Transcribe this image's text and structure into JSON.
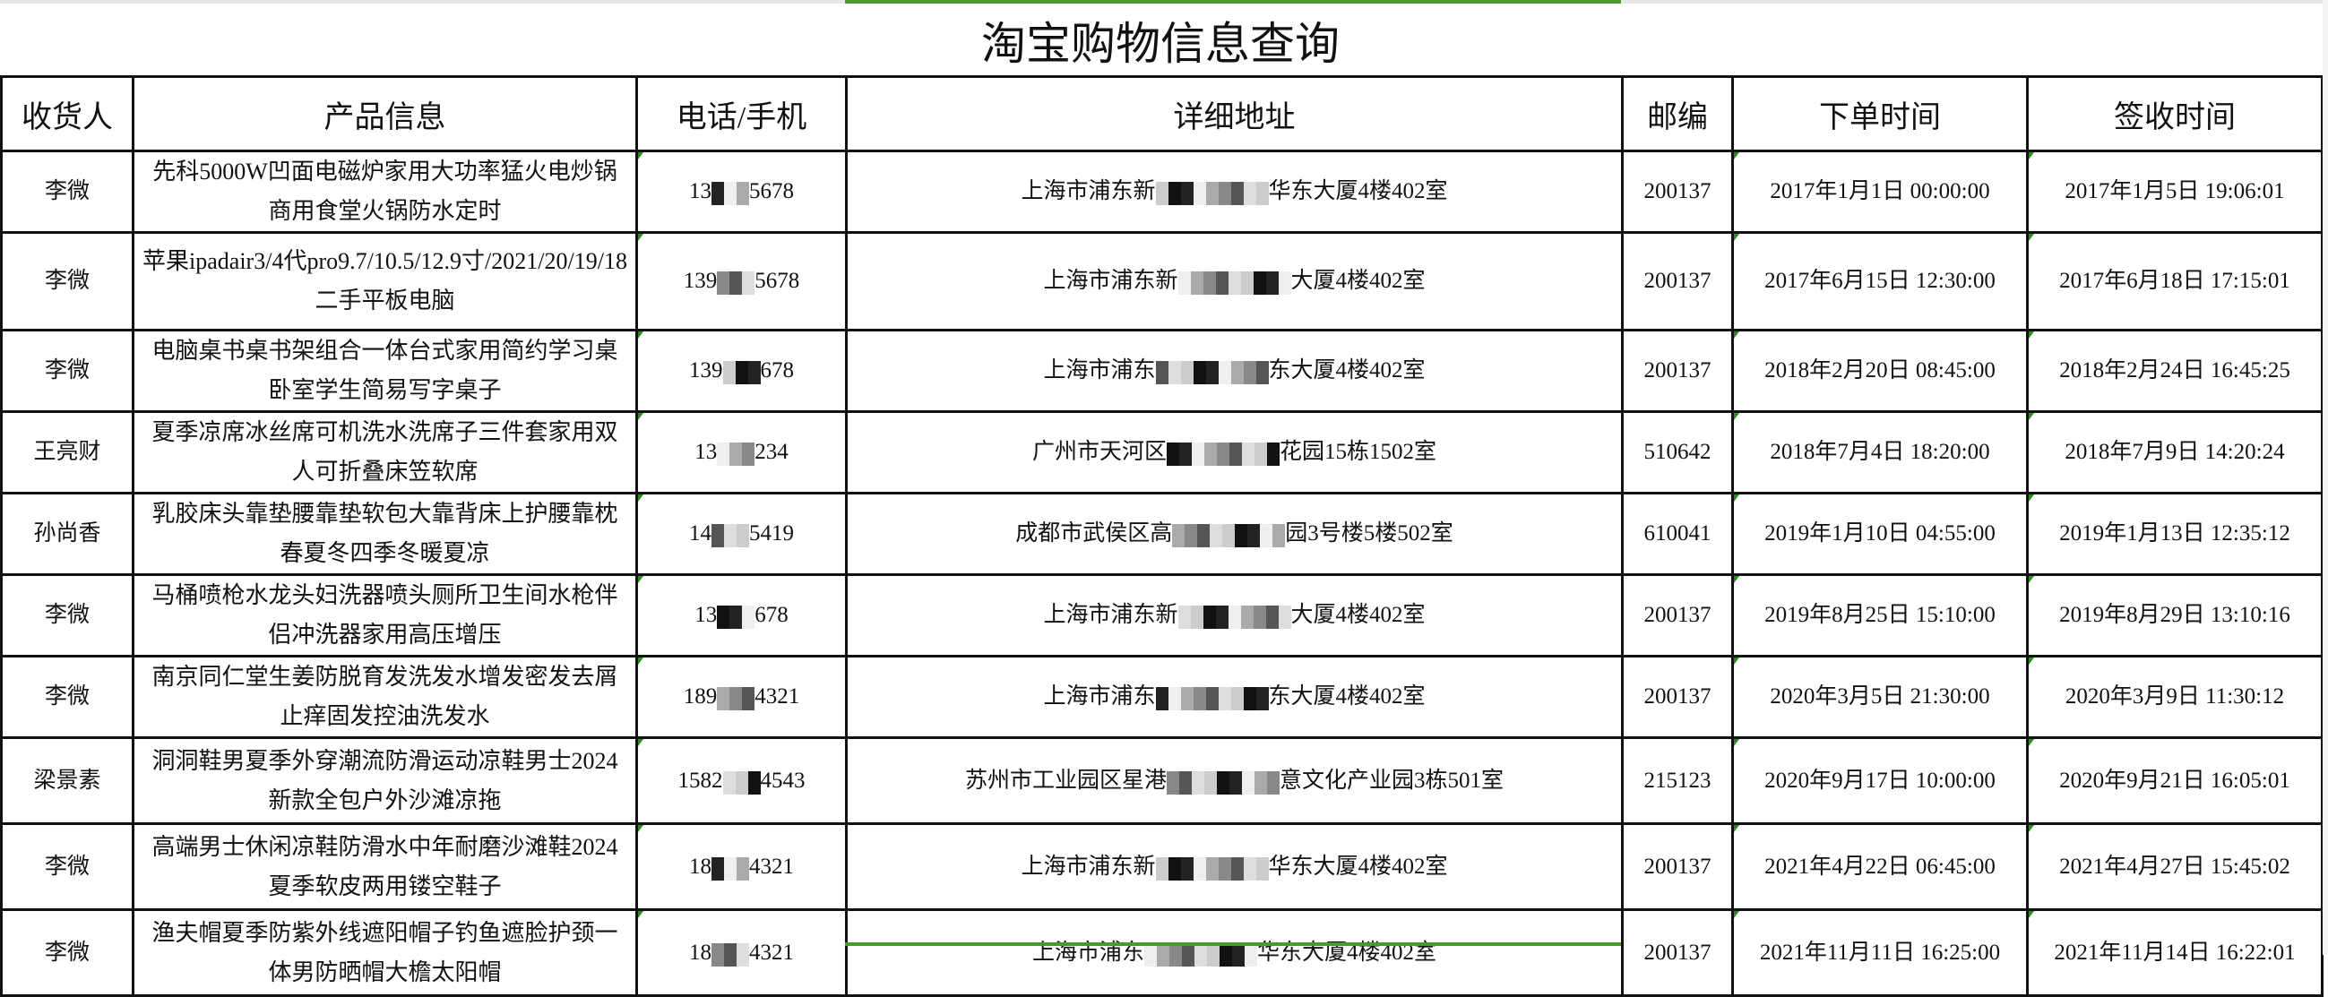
{
  "title": "淘宝购物信息查询",
  "accent_color": "#4a9a2a",
  "headers": [
    "收货人",
    "产品信息",
    "电话/手机",
    "详细地址",
    "邮编",
    "下单时间",
    "签收时间"
  ],
  "rows": [
    {
      "name": "李微",
      "product": "先科5000W凹面电磁炉家用大功率猛火电炒锅商用食堂火锅防水定时",
      "phone_prefix": "13",
      "phone_suffix": "5678",
      "addr_prefix": "上海市浦东新",
      "addr_suffix": "华东大厦4楼402室",
      "zip": "200137",
      "order_time": "2017年1月1日 00:00:00",
      "sign_time": "2017年1月5日 19:06:01"
    },
    {
      "name": "李微",
      "product": "苹果ipadair3/4代pro9.7/10.5/12.9寸/2021/20/19/18二手平板电脑",
      "phone_prefix": "139",
      "phone_suffix": "5678",
      "addr_prefix": "上海市浦东新",
      "addr_suffix": "大厦4楼402室",
      "zip": "200137",
      "order_time": "2017年6月15日 12:30:00",
      "sign_time": "2017年6月18日 17:15:01"
    },
    {
      "name": "李微",
      "product": "电脑桌书桌书架组合一体台式家用简约学习桌卧室学生简易写字桌子",
      "phone_prefix": "139",
      "phone_suffix": "678",
      "addr_prefix": "上海市浦东",
      "addr_suffix": "东大厦4楼402室",
      "zip": "200137",
      "order_time": "2018年2月20日 08:45:00",
      "sign_time": "2018年2月24日 16:45:25"
    },
    {
      "name": "王亮财",
      "product": "夏季凉席冰丝席可机洗水洗席子三件套家用双人可折叠床笠软席",
      "phone_prefix": "13",
      "phone_suffix": "234",
      "addr_prefix": "广州市天河区",
      "addr_suffix": "花园15栋1502室",
      "zip": "510642",
      "order_time": "2018年7月4日 18:20:00",
      "sign_time": "2018年7月9日 14:20:24"
    },
    {
      "name": "孙尚香",
      "product": "乳胶床头靠垫腰靠垫软包大靠背床上护腰靠枕春夏冬四季冬暖夏凉",
      "phone_prefix": "14",
      "phone_suffix": "5419",
      "addr_prefix": "成都市武侯区高",
      "addr_suffix": "园3号楼5楼502室",
      "zip": "610041",
      "order_time": "2019年1月10日 04:55:00",
      "sign_time": "2019年1月13日 12:35:12"
    },
    {
      "name": "李微",
      "product": "马桶喷枪水龙头妇洗器喷头厕所卫生间水枪伴侣冲洗器家用高压增压",
      "phone_prefix": "13",
      "phone_suffix": "678",
      "addr_prefix": "上海市浦东新",
      "addr_suffix": "大厦4楼402室",
      "zip": "200137",
      "order_time": "2019年8月25日 15:10:00",
      "sign_time": "2019年8月29日 13:10:16"
    },
    {
      "name": "李微",
      "product": "南京同仁堂生姜防脱育发洗发水增发密发去屑止痒固发控油洗发水",
      "phone_prefix": "189",
      "phone_suffix": "4321",
      "addr_prefix": "上海市浦东",
      "addr_suffix": "东大厦4楼402室",
      "zip": "200137",
      "order_time": "2020年3月5日 21:30:00",
      "sign_time": "2020年3月9日 11:30:12"
    },
    {
      "name": "梁景素",
      "product": "洞洞鞋男夏季外穿潮流防滑运动凉鞋男士2024新款全包户外沙滩凉拖",
      "phone_prefix": "1582",
      "phone_suffix": "4543",
      "addr_prefix": "苏州市工业园区星港",
      "addr_suffix": "意文化产业园3栋501室",
      "zip": "215123",
      "order_time": "2020年9月17日 10:00:00",
      "sign_time": "2020年9月21日 16:05:01"
    },
    {
      "name": "李微",
      "product": "高端男士休闲凉鞋防滑水中年耐磨沙滩鞋2024夏季软皮两用镂空鞋子",
      "phone_prefix": "18",
      "phone_suffix": "4321",
      "addr_prefix": "上海市浦东新",
      "addr_suffix": "华东大厦4楼402室",
      "zip": "200137",
      "order_time": "2021年4月22日 06:45:00",
      "sign_time": "2021年4月27日 15:45:02"
    },
    {
      "name": "李微",
      "product": "渔夫帽夏季防紫外线遮阳帽子钓鱼遮脸护颈一体男防晒帽大檐太阳帽",
      "phone_prefix": "18",
      "phone_suffix": "4321",
      "addr_prefix": "上海市浦东",
      "addr_suffix": "华东大厦4楼402室",
      "zip": "200137",
      "order_time": "2021年11月11日 16:25:00",
      "sign_time": "2021年11月14日 16:22:01"
    }
  ]
}
